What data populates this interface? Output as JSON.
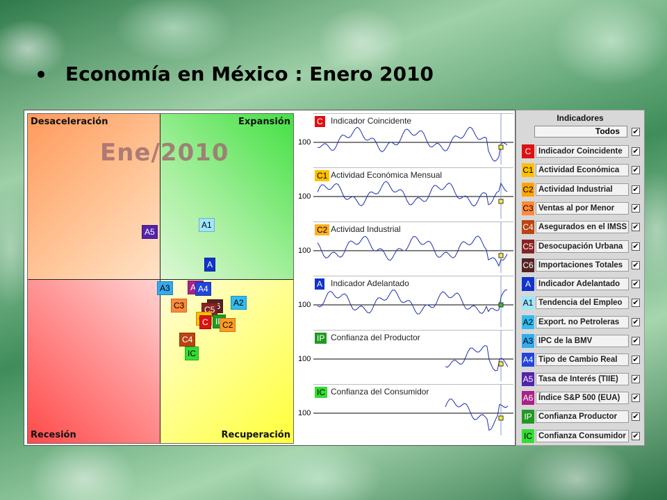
{
  "slide": {
    "title": "Economía en México : Enero 2010"
  },
  "quadrant": {
    "labels": {
      "top_left": "Desaceleración",
      "top_right": "Expansión",
      "bottom_left": "Recesión",
      "bottom_right": "Recuperación"
    },
    "date": "Ene/2010",
    "markers": [
      {
        "code": "A5",
        "bg": "#5522aa",
        "fg": "#ffffff"
      },
      {
        "code": "A1",
        "bg": "#9ee6ff",
        "fg": "#000000"
      },
      {
        "code": "A",
        "bg": "#1133cc",
        "fg": "#ffffff"
      },
      {
        "code": "A3",
        "bg": "#33aaee",
        "fg": "#000000"
      },
      {
        "code": "A6",
        "bg": "#aa2288",
        "fg": "#ffffff"
      },
      {
        "code": "A4",
        "bg": "#2244dd",
        "fg": "#ffffff"
      },
      {
        "code": "A2",
        "bg": "#33bbee",
        "fg": "#000000"
      },
      {
        "code": "C3",
        "bg": "#ff8a3a",
        "fg": "#000000"
      },
      {
        "code": "C6",
        "bg": "#552222",
        "fg": "#ffffff"
      },
      {
        "code": "C5",
        "bg": "#882222",
        "fg": "#ffffff"
      },
      {
        "code": "C1",
        "bg": "#ffc000",
        "fg": "#000000"
      },
      {
        "code": "IP",
        "bg": "#229922",
        "fg": "#ffffff"
      },
      {
        "code": "C2",
        "bg": "#ff9a22",
        "fg": "#000000"
      },
      {
        "code": "C",
        "bg": "#dd1111",
        "fg": "#ffffff"
      },
      {
        "code": "C4",
        "bg": "#bb4411",
        "fg": "#ffffff"
      },
      {
        "code": "IC",
        "bg": "#33dd33",
        "fg": "#000000"
      }
    ]
  },
  "mini_charts": [
    {
      "code": "C",
      "name": "Indicador Coincidente",
      "bg": "#dd1111",
      "fg": "#ffffff",
      "ref": "100"
    },
    {
      "code": "C1",
      "name": "Actividad Económica Mensual",
      "bg": "#ffc000",
      "fg": "#000000",
      "ref": "100"
    },
    {
      "code": "C2",
      "name": "Actividad Industrial",
      "bg": "#ffb020",
      "fg": "#000000",
      "ref": "100"
    },
    {
      "code": "A",
      "name": "Indicador Adelantado",
      "bg": "#1133cc",
      "fg": "#ffffff",
      "ref": "100"
    },
    {
      "code": "IP",
      "name": "Confianza del Productor",
      "bg": "#229922",
      "fg": "#ffffff",
      "ref": "100"
    },
    {
      "code": "IC",
      "name": "Confianza del Consumidor",
      "bg": "#33dd33",
      "fg": "#000000",
      "ref": "100"
    }
  ],
  "indicators": {
    "title": "Indicadores",
    "all_label": "Todos",
    "check_mark": "✔",
    "items": [
      {
        "code": "C",
        "name": "Indicador Coincidente",
        "bg": "#dd1111",
        "fg": "#ffffff"
      },
      {
        "code": "C1",
        "name": "Actividad Económica",
        "bg": "#ffc000",
        "fg": "#000000"
      },
      {
        "code": "C2",
        "name": "Actividad Industrial",
        "bg": "#ffa500",
        "fg": "#000000"
      },
      {
        "code": "C3",
        "name": "Ventas al por Menor",
        "bg": "#ff8a3a",
        "fg": "#000000"
      },
      {
        "code": "C4",
        "name": "Asegurados en el IMSS",
        "bg": "#bb4411",
        "fg": "#ffffff"
      },
      {
        "code": "C5",
        "name": "Desocupación Urbana",
        "bg": "#882222",
        "fg": "#ffffff"
      },
      {
        "code": "C6",
        "name": "Importaciones Totales",
        "bg": "#552222",
        "fg": "#ffffff"
      },
      {
        "code": "A",
        "name": "Indicador Adelantado",
        "bg": "#1133cc",
        "fg": "#ffffff"
      },
      {
        "code": "A1",
        "name": "Tendencia del Empleo",
        "bg": "#9ee6ff",
        "fg": "#000000"
      },
      {
        "code": "A2",
        "name": "Export. no Petroleras",
        "bg": "#33bbee",
        "fg": "#000000"
      },
      {
        "code": "A3",
        "name": "IPC de la BMV",
        "bg": "#33aaee",
        "fg": "#000000"
      },
      {
        "code": "A4",
        "name": "Tipo de Cambio Real",
        "bg": "#2244dd",
        "fg": "#ffffff"
      },
      {
        "code": "A5",
        "name": "Tasa de Interés (TIIE)",
        "bg": "#5522aa",
        "fg": "#ffffff"
      },
      {
        "code": "A6",
        "name": "Índice S&P 500 (EUA)",
        "bg": "#aa2288",
        "fg": "#ffffff"
      },
      {
        "code": "IP",
        "name": "Confianza Productor",
        "bg": "#229922",
        "fg": "#ffffff"
      },
      {
        "code": "IC",
        "name": "Confianza Consumidor",
        "bg": "#33dd33",
        "fg": "#000000"
      }
    ]
  }
}
